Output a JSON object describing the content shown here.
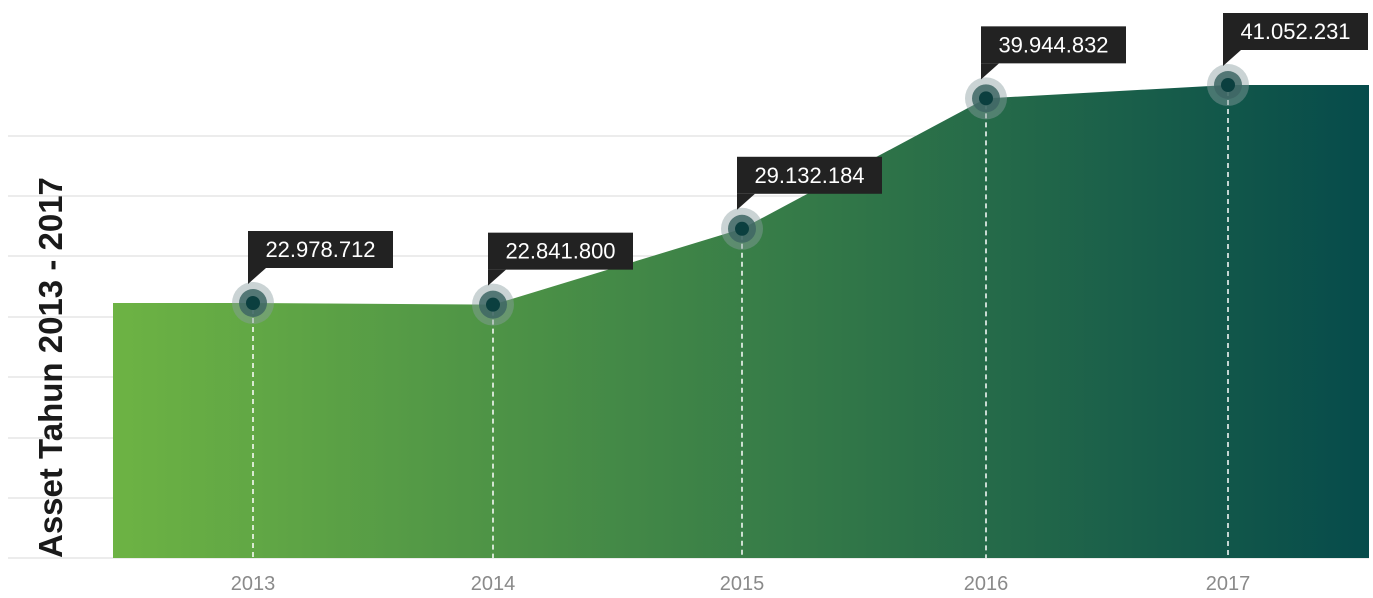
{
  "chart_data": {
    "type": "area",
    "title": "",
    "xlabel": "",
    "ylabel": "Asset Tahun 2013 - 2017",
    "categories": [
      "2013",
      "2014",
      "2015",
      "2016",
      "2017"
    ],
    "values": [
      22978712,
      22841800,
      29132184,
      39944832,
      41052231
    ],
    "data_labels": [
      "22.978.712",
      "22.841.800",
      "29.132.184",
      "39.944.832",
      "41.052.231"
    ],
    "grid": true,
    "legend": "none",
    "colors": {
      "gradient_start": "#6db344",
      "gradient_end": "#064b4b",
      "marker": "#0b3f3f",
      "label_bg": "#222222",
      "grid": "#d9d9d9",
      "tick": "#8a8a8a"
    }
  }
}
